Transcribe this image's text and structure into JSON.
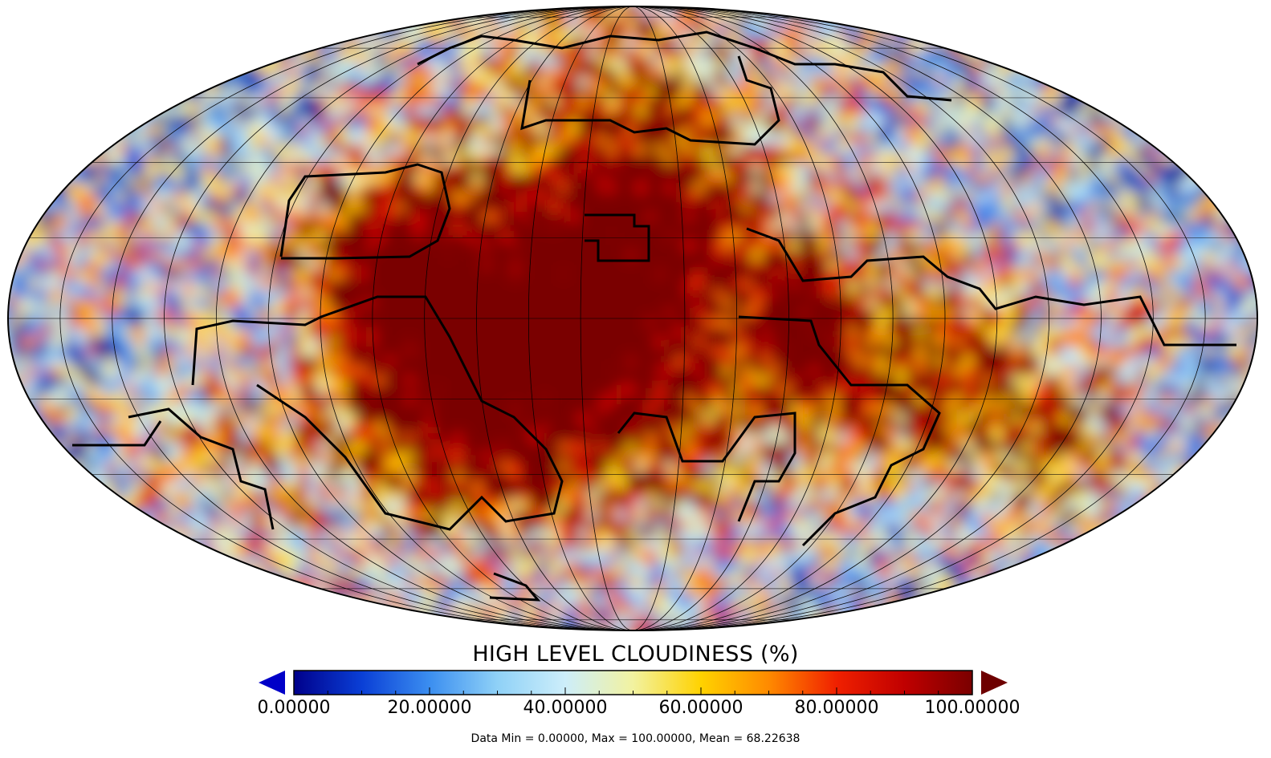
{
  "map": {
    "projection": "Mollweide",
    "variable": "high level cloudiness",
    "units": "%",
    "colormap": [
      "#00008b",
      "#0a3fd6",
      "#3b8ef0",
      "#8fd1f7",
      "#cdeefa",
      "#f2f2a0",
      "#ffd200",
      "#ff8a00",
      "#f02000",
      "#c00000",
      "#7a0000"
    ]
  },
  "colorbar": {
    "title": "HIGH LEVEL CLOUDINESS (%)",
    "min": 0,
    "max": 100,
    "ticks": [
      {
        "value": 0,
        "label": "0.00000"
      },
      {
        "value": 20,
        "label": "20.00000"
      },
      {
        "value": 40,
        "label": "40.00000"
      },
      {
        "value": 60,
        "label": "60.00000"
      },
      {
        "value": 80,
        "label": "80.00000"
      },
      {
        "value": 100,
        "label": "100.00000"
      }
    ],
    "under_color": "#0000c8",
    "over_color": "#6e0000"
  },
  "stats": {
    "text": "Data Min = 0.00000, Max = 100.00000, Mean = 68.22638",
    "min": 0.0,
    "max": 100.0,
    "mean": 68.22638
  }
}
